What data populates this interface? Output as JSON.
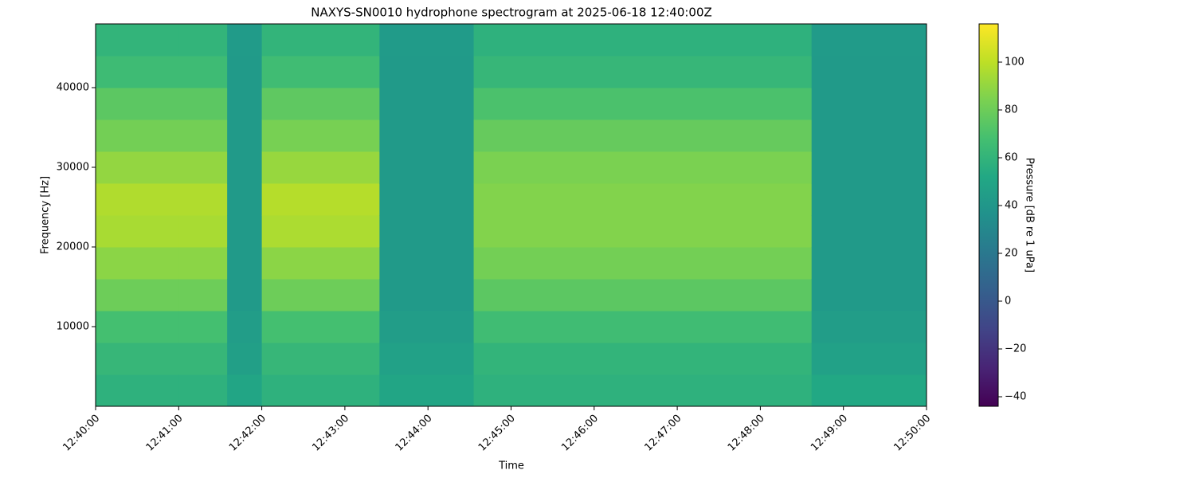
{
  "chart_data": {
    "type": "heatmap",
    "title": "NAXYS-SN0010 hydrophone spectrogram at 2025-06-18 12:40:00Z",
    "xlabel": "Time",
    "ylabel": "Frequency [Hz]",
    "colorbar_label": "Pressure [dB re 1 uPa]",
    "colormap": "viridis",
    "x_edges": [
      "12:40:00",
      "12:41:00",
      "12:41:35",
      "12:42:00",
      "12:43:25",
      "12:44:33",
      "12:48:37",
      "12:50:00"
    ],
    "y_edges": [
      0,
      4000,
      8000,
      12000,
      16000,
      20000,
      24000,
      28000,
      32000,
      36000,
      40000,
      44000,
      48000
    ],
    "values": [
      [
        58,
        62,
        68,
        80,
        88,
        95,
        97,
        90,
        82,
        75,
        65,
        60
      ],
      [
        58,
        62,
        68,
        80,
        88,
        95,
        97,
        90,
        82,
        75,
        65,
        60
      ],
      [
        50,
        46,
        44,
        42,
        42,
        42,
        42,
        42,
        42,
        42,
        42,
        43
      ],
      [
        58,
        62,
        68,
        80,
        88,
        96,
        98,
        91,
        83,
        76,
        66,
        60
      ],
      [
        50,
        47,
        44,
        42,
        42,
        42,
        42,
        42,
        42,
        42,
        42,
        43
      ],
      [
        58,
        60,
        66,
        75,
        82,
        86,
        86,
        84,
        78,
        70,
        62,
        58
      ],
      [
        52,
        47,
        44,
        42,
        42,
        42,
        42,
        42,
        42,
        42,
        42,
        43
      ]
    ],
    "xlim": [
      "12:40:00",
      "12:50:00"
    ],
    "xticks": [
      "12:40:00",
      "12:41:00",
      "12:42:00",
      "12:43:00",
      "12:44:00",
      "12:45:00",
      "12:46:00",
      "12:47:00",
      "12:48:00",
      "12:49:00",
      "12:50:00"
    ],
    "ylim": [
      0,
      48000
    ],
    "yticks": [
      10000,
      20000,
      30000,
      40000
    ],
    "clim": [
      -44,
      116
    ],
    "cticks": [
      {
        "value": -40,
        "label": "−40"
      },
      {
        "value": -20,
        "label": "−20"
      },
      0,
      20,
      40,
      60,
      80,
      100
    ]
  }
}
